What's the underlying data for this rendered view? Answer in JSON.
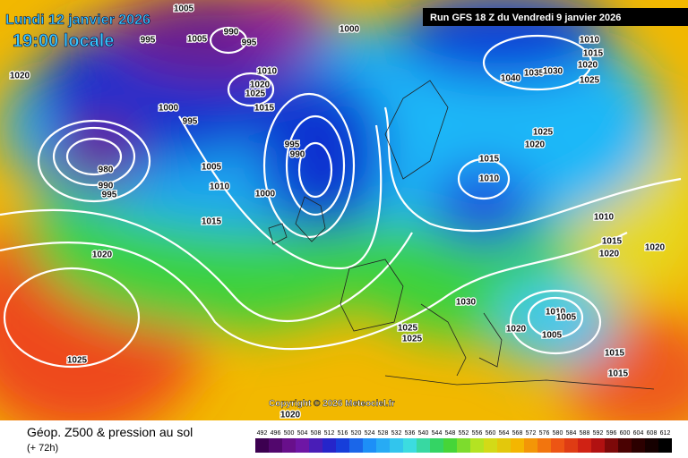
{
  "header": {
    "date": "Lundi 12 janvier 2026",
    "time": "19:00 locale",
    "run": "Run GFS 18 Z du Vendredi 9 janvier 2026"
  },
  "copyright": "Copyright © 2026 Meteociel.fr",
  "footer": {
    "title": "Géop. Z500 & pression au sol",
    "lead": "(+ 72h)"
  },
  "isobar_labels": [
    1005,
    995,
    1005,
    990,
    995,
    1000,
    1020,
    1010,
    1020,
    1025,
    1015,
    1000,
    995,
    1010,
    1015,
    1020,
    1025,
    1040,
    1035,
    1030,
    1025,
    1020,
    995,
    990,
    1015,
    1010,
    1005,
    1010,
    1000,
    980,
    990,
    995,
    1015,
    1010,
    1015,
    1020,
    1020,
    1020,
    1030,
    1010,
    1005,
    1005,
    1020,
    1025,
    1025,
    1025,
    1015,
    1015,
    1020
  ],
  "colorbar": {
    "ticks": [
      492,
      496,
      500,
      504,
      508,
      512,
      516,
      520,
      524,
      528,
      532,
      536,
      540,
      544,
      548,
      552,
      556,
      560,
      564,
      568,
      572,
      576,
      580,
      584,
      588,
      592,
      596,
      600,
      604,
      608,
      612
    ]
  }
}
